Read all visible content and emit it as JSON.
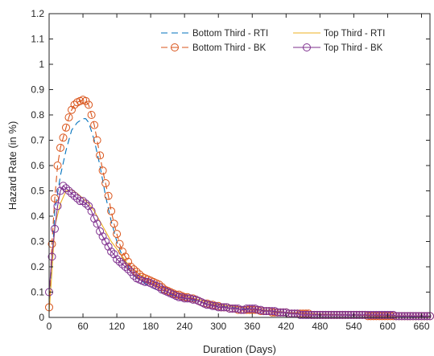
{
  "chart_data": {
    "type": "line",
    "xlabel": "Duration (Days)",
    "ylabel": "Hazard Rate (in %)",
    "xlim": [
      0,
      675
    ],
    "ylim": [
      0,
      1.2
    ],
    "xticks": [
      0,
      60,
      120,
      180,
      240,
      300,
      360,
      420,
      480,
      540,
      600,
      660
    ],
    "yticks": [
      0,
      0.1,
      0.2,
      0.3,
      0.4,
      0.5,
      0.6,
      0.7,
      0.8,
      0.9,
      1,
      1.1,
      1.2
    ],
    "grid": false,
    "legend_position": "top-right",
    "series": [
      {
        "name": "Bottom Third - RTI",
        "color": "#0072BD",
        "line_style": "dashed",
        "marker": "none",
        "x": [
          0,
          5,
          10,
          20,
          30,
          40,
          50,
          60,
          65,
          70,
          80,
          90,
          100,
          110,
          120,
          130,
          140,
          150,
          160,
          180,
          200,
          240,
          300,
          360,
          420,
          480,
          540,
          600,
          660,
          675
        ],
        "y": [
          0.03,
          0.2,
          0.42,
          0.56,
          0.66,
          0.74,
          0.77,
          0.785,
          0.785,
          0.77,
          0.7,
          0.6,
          0.48,
          0.38,
          0.3,
          0.24,
          0.2,
          0.17,
          0.15,
          0.12,
          0.1,
          0.075,
          0.045,
          0.03,
          0.02,
          0.012,
          0.008,
          0.005,
          0.003,
          0.003
        ]
      },
      {
        "name": "Top Third - RTI",
        "color": "#EDB120",
        "line_style": "solid",
        "marker": "none",
        "x": [
          0,
          5,
          10,
          20,
          30,
          40,
          50,
          60,
          70,
          80,
          90,
          100,
          110,
          120,
          130,
          140,
          150,
          160,
          180,
          200,
          240,
          300,
          360,
          420,
          480,
          540,
          600,
          660,
          675
        ],
        "y": [
          0.02,
          0.18,
          0.36,
          0.45,
          0.5,
          0.505,
          0.49,
          0.47,
          0.45,
          0.42,
          0.38,
          0.34,
          0.3,
          0.27,
          0.24,
          0.21,
          0.19,
          0.17,
          0.145,
          0.12,
          0.085,
          0.05,
          0.035,
          0.02,
          0.013,
          0.009,
          0.006,
          0.004,
          0.004
        ]
      },
      {
        "name": "Bottom Third - BK",
        "color": "#D95319",
        "line_style": "dashed",
        "marker": "circle",
        "x": [
          0,
          5,
          10,
          15,
          20,
          25,
          30,
          35,
          40,
          45,
          50,
          55,
          60,
          65,
          70,
          75,
          80,
          85,
          90,
          95,
          100,
          105,
          110,
          115,
          120,
          125,
          130,
          135,
          140,
          145,
          150,
          155,
          160,
          165,
          170,
          175,
          180,
          185,
          190,
          195,
          200,
          205,
          210,
          215,
          220,
          225,
          230,
          235,
          240,
          245,
          250,
          255,
          260,
          265,
          270,
          275,
          280,
          285,
          290,
          295,
          300,
          305,
          310,
          315,
          320,
          325,
          330,
          335,
          340,
          345,
          350,
          355,
          360,
          365,
          370,
          375,
          380,
          385,
          390,
          395,
          400,
          405,
          410,
          415,
          420,
          425,
          430,
          435,
          440,
          445,
          450,
          455,
          460,
          465,
          470,
          475,
          480,
          485,
          490,
          495,
          500,
          505,
          510,
          515,
          520,
          525,
          530,
          535,
          540,
          545,
          550,
          555,
          560,
          565,
          570,
          575,
          580,
          585,
          590,
          595,
          600,
          605,
          610,
          615,
          620,
          625,
          630,
          635,
          640,
          645,
          650,
          655,
          660,
          665,
          670,
          675
        ],
        "y": [
          0.04,
          0.29,
          0.47,
          0.6,
          0.67,
          0.71,
          0.75,
          0.79,
          0.82,
          0.84,
          0.85,
          0.855,
          0.86,
          0.855,
          0.84,
          0.8,
          0.76,
          0.7,
          0.64,
          0.58,
          0.53,
          0.48,
          0.42,
          0.37,
          0.33,
          0.29,
          0.26,
          0.24,
          0.22,
          0.2,
          0.19,
          0.18,
          0.17,
          0.16,
          0.155,
          0.15,
          0.145,
          0.14,
          0.135,
          0.13,
          0.12,
          0.11,
          0.105,
          0.1,
          0.095,
          0.09,
          0.09,
          0.085,
          0.08,
          0.08,
          0.075,
          0.075,
          0.07,
          0.065,
          0.06,
          0.055,
          0.055,
          0.05,
          0.05,
          0.045,
          0.045,
          0.04,
          0.04,
          0.04,
          0.035,
          0.035,
          0.035,
          0.03,
          0.03,
          0.03,
          0.03,
          0.03,
          0.03,
          0.03,
          0.03,
          0.025,
          0.025,
          0.025,
          0.025,
          0.02,
          0.02,
          0.02,
          0.02,
          0.02,
          0.02,
          0.015,
          0.015,
          0.015,
          0.015,
          0.015,
          0.015,
          0.015,
          0.015,
          0.01,
          0.01,
          0.01,
          0.01,
          0.01,
          0.01,
          0.01,
          0.01,
          0.01,
          0.01,
          0.01,
          0.01,
          0.01,
          0.01,
          0.01,
          0.01,
          0.01,
          0.01,
          0.01,
          0.01,
          0.005,
          0.005,
          0.005,
          0.005,
          0.005,
          0.005,
          0.005,
          0.005,
          0.005,
          0.005,
          0.005,
          0.005,
          0.005,
          0.005,
          0.005,
          0.005,
          0.005,
          0.005,
          0.005,
          0.005,
          0.005,
          0.005,
          0.005
        ]
      },
      {
        "name": "Top Third - BK",
        "color": "#7E2F8E",
        "line_style": "solid",
        "marker": "circle",
        "x": [
          0,
          5,
          10,
          15,
          20,
          25,
          30,
          35,
          40,
          45,
          50,
          55,
          60,
          65,
          70,
          75,
          80,
          85,
          90,
          95,
          100,
          105,
          110,
          115,
          120,
          125,
          130,
          135,
          140,
          145,
          150,
          155,
          160,
          165,
          170,
          175,
          180,
          185,
          190,
          195,
          200,
          205,
          210,
          215,
          220,
          225,
          230,
          235,
          240,
          245,
          250,
          255,
          260,
          265,
          270,
          275,
          280,
          285,
          290,
          295,
          300,
          305,
          310,
          315,
          320,
          325,
          330,
          335,
          340,
          345,
          350,
          355,
          360,
          365,
          370,
          375,
          380,
          385,
          390,
          395,
          400,
          405,
          410,
          415,
          420,
          425,
          430,
          435,
          440,
          445,
          450,
          455,
          460,
          465,
          470,
          475,
          480,
          485,
          490,
          495,
          500,
          505,
          510,
          515,
          520,
          525,
          530,
          535,
          540,
          545,
          550,
          555,
          560,
          565,
          570,
          575,
          580,
          585,
          590,
          595,
          600,
          605,
          610,
          615,
          620,
          625,
          630,
          635,
          640,
          645,
          650,
          655,
          660,
          665,
          670,
          675
        ],
        "y": [
          0.1,
          0.24,
          0.35,
          0.44,
          0.5,
          0.52,
          0.51,
          0.5,
          0.49,
          0.48,
          0.47,
          0.46,
          0.46,
          0.45,
          0.44,
          0.42,
          0.39,
          0.37,
          0.34,
          0.32,
          0.3,
          0.28,
          0.26,
          0.25,
          0.23,
          0.22,
          0.21,
          0.2,
          0.19,
          0.18,
          0.165,
          0.155,
          0.15,
          0.145,
          0.14,
          0.14,
          0.135,
          0.13,
          0.125,
          0.12,
          0.11,
          0.105,
          0.1,
          0.095,
          0.09,
          0.085,
          0.08,
          0.08,
          0.075,
          0.075,
          0.075,
          0.07,
          0.07,
          0.065,
          0.06,
          0.055,
          0.05,
          0.05,
          0.045,
          0.045,
          0.04,
          0.04,
          0.04,
          0.04,
          0.035,
          0.035,
          0.035,
          0.035,
          0.03,
          0.03,
          0.035,
          0.035,
          0.035,
          0.035,
          0.03,
          0.03,
          0.025,
          0.025,
          0.025,
          0.025,
          0.025,
          0.02,
          0.02,
          0.02,
          0.02,
          0.015,
          0.015,
          0.015,
          0.015,
          0.01,
          0.01,
          0.01,
          0.01,
          0.01,
          0.01,
          0.01,
          0.01,
          0.01,
          0.01,
          0.01,
          0.01,
          0.01,
          0.01,
          0.01,
          0.01,
          0.01,
          0.01,
          0.01,
          0.01,
          0.01,
          0.01,
          0.01,
          0.01,
          0.01,
          0.01,
          0.01,
          0.01,
          0.01,
          0.01,
          0.01,
          0.01,
          0.01,
          0.01,
          0.005,
          0.005,
          0.005,
          0.005,
          0.005,
          0.005,
          0.005,
          0.005,
          0.005,
          0.005,
          0.005,
          0.005,
          0.005
        ]
      }
    ]
  }
}
